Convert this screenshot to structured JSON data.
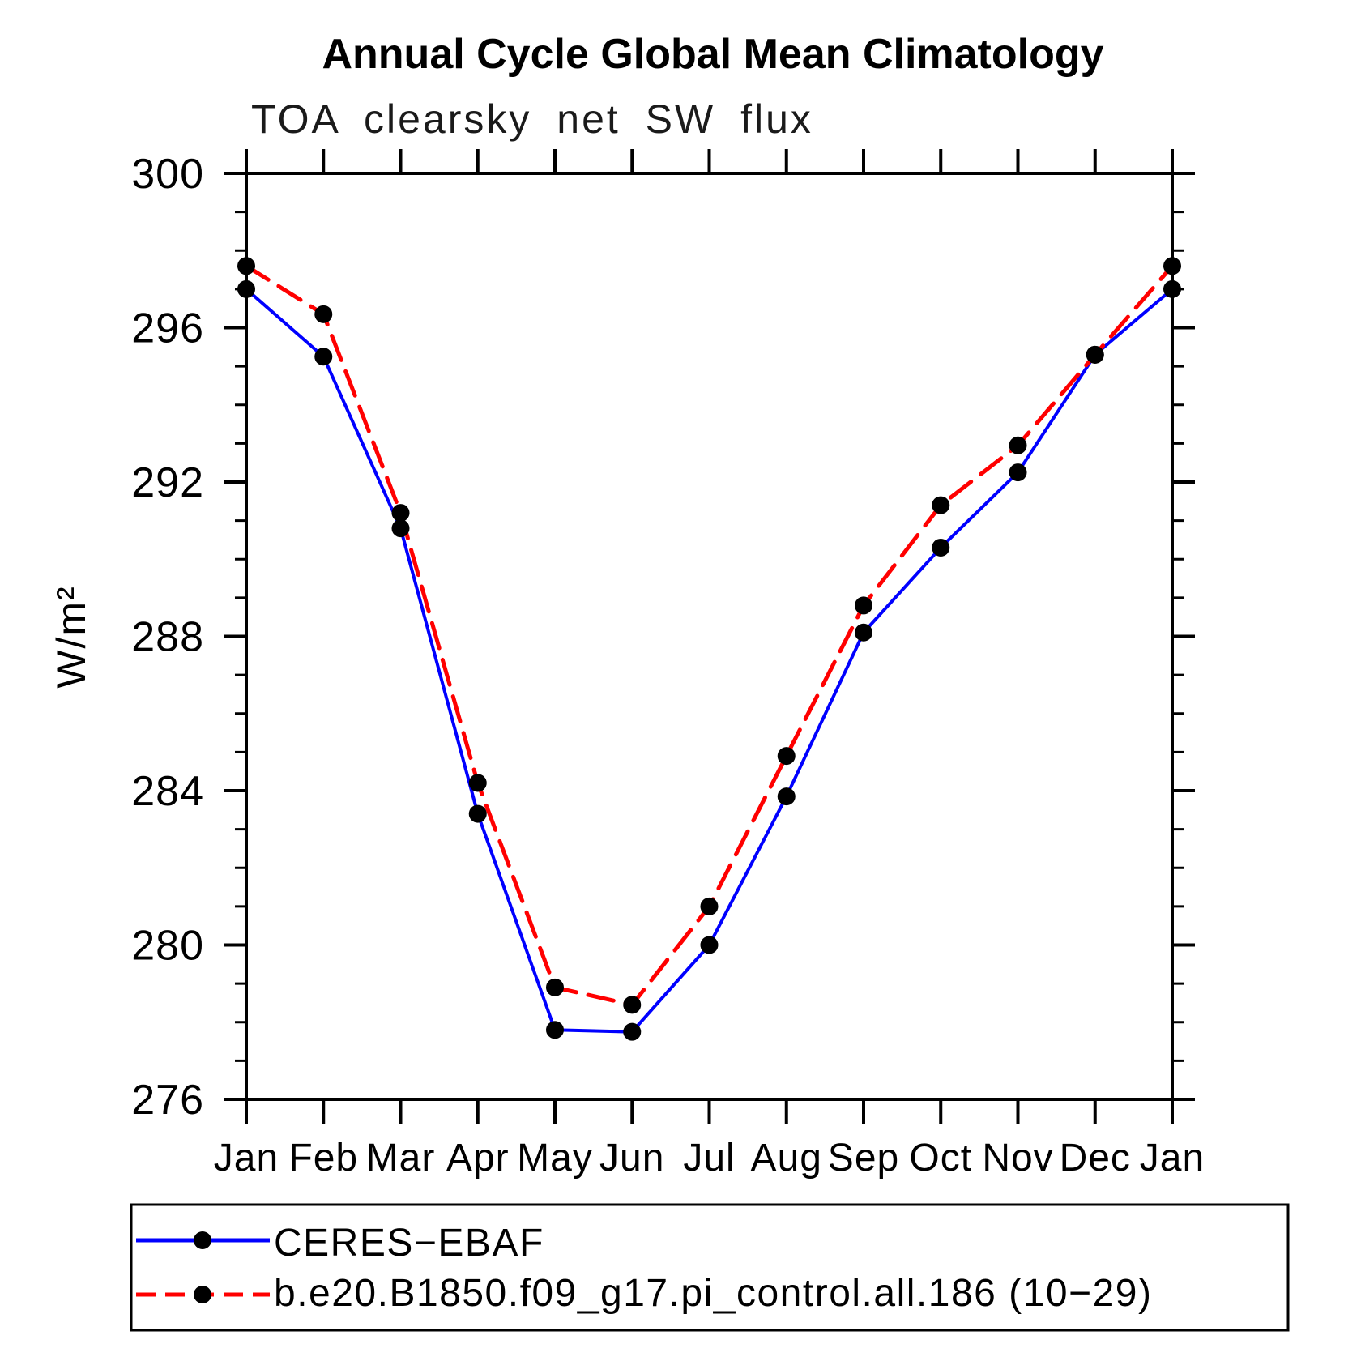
{
  "title": "Annual Cycle Global Mean Climatology",
  "subtitle": "TOA clearsky net SW flux",
  "chart_data": {
    "type": "line",
    "title": "Annual Cycle Global Mean Climatology",
    "subtitle": "TOA clearsky net SW flux",
    "ylabel": "W/m²",
    "xlabel": "",
    "x_labels": [
      "Jan",
      "Feb",
      "Mar",
      "Apr",
      "May",
      "Jun",
      "Jul",
      "Aug",
      "Sep",
      "Oct",
      "Nov",
      "Dec",
      "Jan"
    ],
    "ylim": [
      276,
      300
    ],
    "ytick_major_step": 4,
    "ytick_minor_step": 1,
    "grid": "off",
    "legend_position": "bottom",
    "series": [
      {
        "name": "CERES−EBAF",
        "color": "#0000ff",
        "style": "solid",
        "marker": "circle",
        "marker_color": "#000000",
        "values": [
          297.0,
          295.25,
          290.8,
          283.4,
          277.8,
          277.75,
          280.0,
          283.85,
          288.1,
          290.3,
          292.25,
          295.3,
          297.0
        ]
      },
      {
        "name": "b.e20.B1850.f09_g17.pi_control.all.186 (10−29)",
        "color": "#ff0000",
        "style": "dashed",
        "marker": "circle",
        "marker_color": "#000000",
        "values": [
          297.6,
          296.35,
          291.2,
          284.2,
          278.9,
          278.45,
          281.0,
          284.9,
          288.8,
          291.4,
          292.95,
          295.3,
          297.6
        ]
      }
    ]
  }
}
